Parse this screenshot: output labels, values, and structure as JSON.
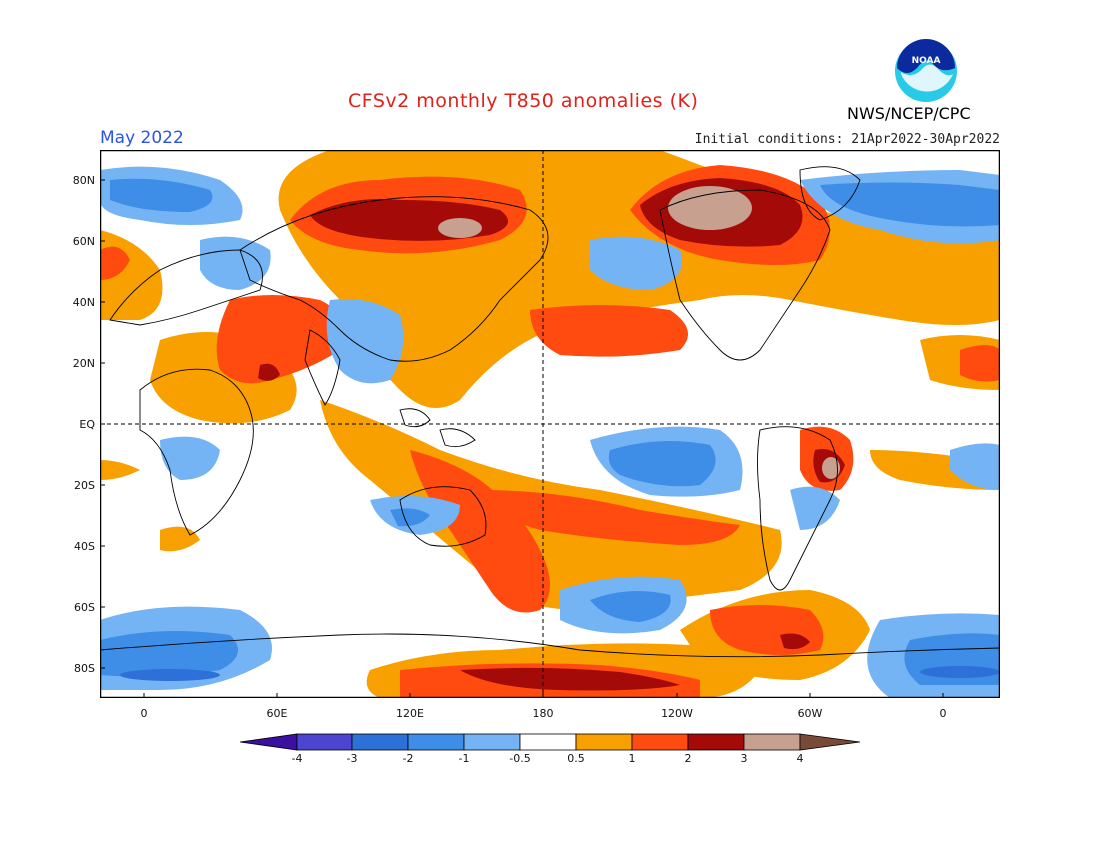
{
  "header": {
    "title": "CFSv2 monthly T850 anomalies (K)",
    "month": "May 2022",
    "initial_conditions": "Initial conditions: 21Apr2022-30Apr2022",
    "agency": "NWS/NCEP/CPC",
    "logo_text": "NOAA"
  },
  "axes": {
    "y_labels": [
      "80N",
      "60N",
      "40N",
      "20N",
      "EQ",
      "20S",
      "40S",
      "60S",
      "80S"
    ],
    "x_labels": [
      "0",
      "60E",
      "120E",
      "180",
      "120W",
      "60W",
      "0"
    ]
  },
  "colorbar": {
    "labels": [
      "-4",
      "-3",
      "-2",
      "-1",
      "-0.5",
      "0.5",
      "1",
      "2",
      "3",
      "4"
    ],
    "colors": [
      "#3b0fa0",
      "#4b45d0",
      "#2c70d8",
      "#3e8ee8",
      "#74b4f4",
      "#ffffff",
      "#f8a000",
      "#ff4a10",
      "#a40a08",
      "#c8a090",
      "#7a4a38"
    ]
  }
}
